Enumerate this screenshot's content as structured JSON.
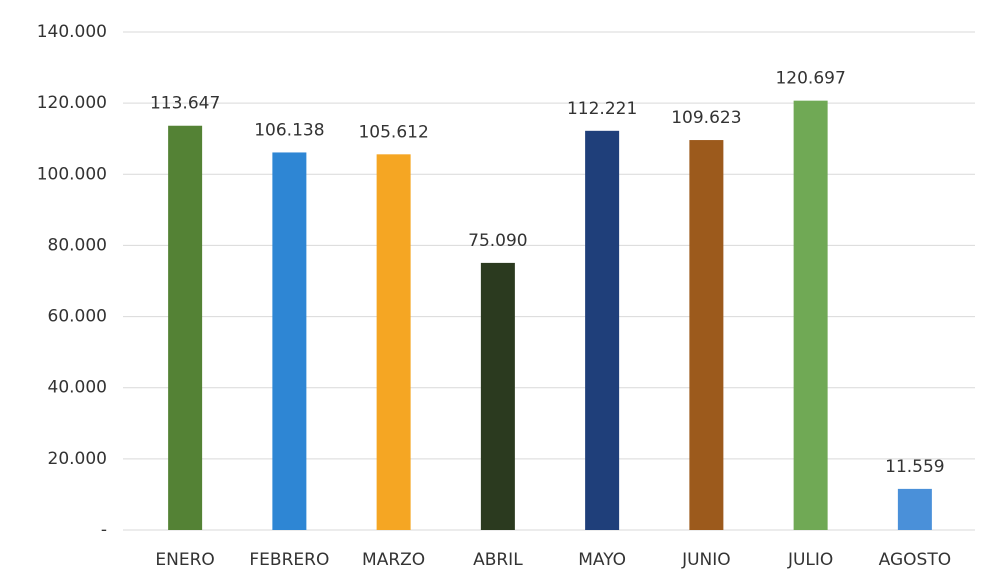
{
  "chart_data": {
    "type": "bar",
    "categories": [
      "ENERO",
      "FEBRERO",
      "MARZO",
      "ABRIL",
      "MAYO",
      "JUNIO",
      "JULIO",
      "AGOSTO"
    ],
    "values": [
      113647,
      106138,
      105612,
      75090,
      112221,
      109623,
      120697,
      11559
    ],
    "value_labels": [
      "113.647",
      "106.138",
      "105.612",
      "75.090",
      "112.221",
      "109.623",
      "120.697",
      "11.559"
    ],
    "colors": [
      "#548235",
      "#2e86d4",
      "#f5a623",
      "#2b3a1f",
      "#1f3f7a",
      "#9c5a1c",
      "#70a955",
      "#4a90d9"
    ],
    "ylim": [
      0,
      140000
    ],
    "yticks": [
      {
        "value": 0,
        "label": "-"
      },
      {
        "value": 20000,
        "label": "20.000"
      },
      {
        "value": 40000,
        "label": "40.000"
      },
      {
        "value": 60000,
        "label": "60.000"
      },
      {
        "value": 80000,
        "label": "80.000"
      },
      {
        "value": 100000,
        "label": "100.000"
      },
      {
        "value": 120000,
        "label": "120.000"
      },
      {
        "value": 140000,
        "label": "140.000"
      }
    ],
    "grid": true
  }
}
